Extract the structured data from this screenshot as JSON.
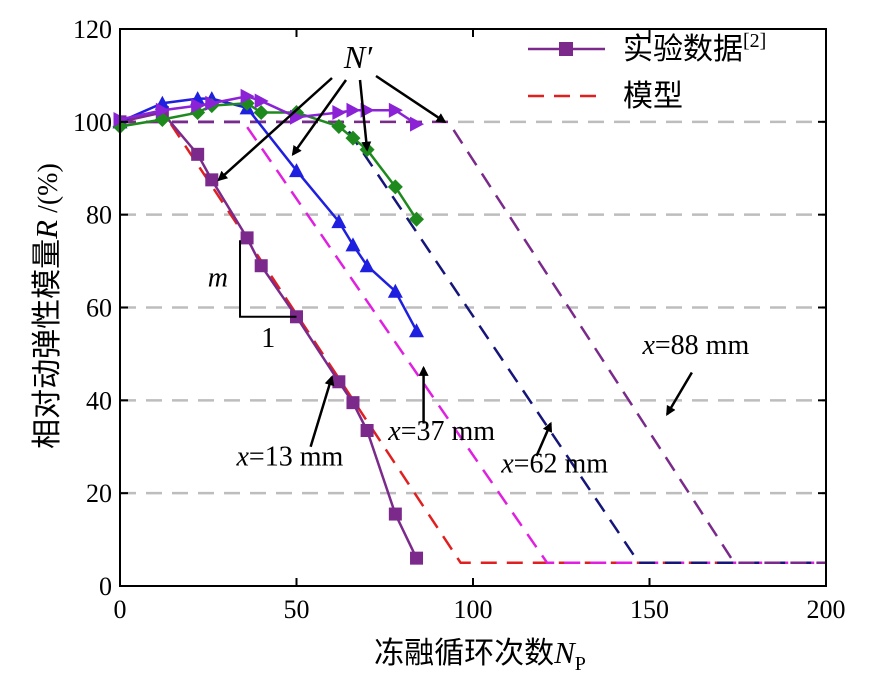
{
  "chart_data": {
    "type": "line",
    "xlabel_main": "冻融循环次数",
    "xlabel_var": "N",
    "xlabel_sub": "P",
    "ylabel_main": "相对动弹性模量",
    "ylabel_var": "R",
    "ylabel_unit": " /(%)",
    "xlim": [
      0,
      200
    ],
    "ylim": [
      0,
      120
    ],
    "xticks": [
      0,
      50,
      100,
      150,
      200
    ],
    "yticks": [
      0,
      20,
      40,
      60,
      80,
      100,
      120
    ],
    "gridlines_y": [
      20,
      40,
      60,
      80,
      100
    ],
    "legend": {
      "experiment_main": "实验数据",
      "experiment_ref": "[2]",
      "model": "模型"
    },
    "experiment_series": [
      {
        "name": "x=13 mm",
        "color": "#7B2A8C",
        "marker": "square",
        "x": [
          0,
          12,
          22,
          26,
          36,
          40,
          50,
          62,
          66,
          70,
          78,
          84
        ],
        "y": [
          100,
          102,
          93,
          87.5,
          75,
          69,
          58,
          44,
          39.5,
          33.5,
          15.5,
          6
        ]
      },
      {
        "name": "x=37 mm",
        "color": "#1F1FE0",
        "marker": "triangle-up",
        "x": [
          0,
          12,
          22,
          26,
          36,
          50,
          62,
          66,
          70,
          78,
          84
        ],
        "y": [
          100,
          104,
          105,
          105,
          103,
          89.5,
          78.5,
          73.5,
          69,
          63.5,
          55
        ]
      },
      {
        "name": "x=62 mm",
        "color": "#1E8A1E",
        "marker": "diamond",
        "x": [
          0,
          12,
          22,
          26,
          36,
          40,
          50,
          62,
          66,
          70,
          78,
          84
        ],
        "y": [
          99,
          100.5,
          102,
          103.5,
          104,
          102,
          102,
          99,
          96.5,
          94,
          86,
          79
        ]
      },
      {
        "name": "x=88 mm",
        "color": "#8B22D6",
        "marker": "triangle-right",
        "x": [
          0,
          12,
          22,
          26,
          36,
          40,
          50,
          62,
          66,
          70,
          78,
          84
        ],
        "y": [
          100.5,
          102.5,
          103.5,
          104,
          105.5,
          104.5,
          101,
          102,
          102.5,
          102.5,
          102.5,
          99.5
        ]
      }
    ],
    "model_series": [
      {
        "name": "x=13 mm",
        "color": "#E02020",
        "x": [
          0,
          14,
          96.5,
          200
        ],
        "y": [
          100,
          100,
          5,
          5
        ]
      },
      {
        "name": "x=37 mm",
        "color": "#E020E0",
        "x": [
          0,
          35,
          121,
          200
        ],
        "y": [
          100,
          100,
          5,
          5
        ]
      },
      {
        "name": "x=62 mm",
        "color": "#15157A",
        "x": [
          0,
          63,
          147,
          200
        ],
        "y": [
          100,
          100,
          5,
          5
        ]
      },
      {
        "name": "x=88 mm",
        "color": "#7A2A8A",
        "x": [
          0,
          93,
          174,
          200
        ],
        "y": [
          100,
          100,
          5,
          5
        ]
      }
    ],
    "annotations": {
      "n_prime": "N′",
      "n_prime_targets": [
        {
          "x": 28,
          "y": 87.5
        },
        {
          "x": 49,
          "y": 93
        },
        {
          "x": 70,
          "y": 94
        },
        {
          "x": 92,
          "y": 100
        }
      ],
      "slope_rise": "m",
      "slope_run": "1",
      "slope_corner": {
        "x": 34,
        "y": 58
      },
      "slope_top_y": 74.5,
      "slope_right_x": 50,
      "labels": [
        {
          "var": "x",
          "text": "=13 mm",
          "x": 33,
          "y": 26,
          "tip": [
            60,
            45
          ],
          "tail": [
            54,
            30
          ]
        },
        {
          "var": "x",
          "text": "=37 mm",
          "x": 76,
          "y": 31.5,
          "tip": [
            86,
            47
          ],
          "tail": [
            86,
            35
          ]
        },
        {
          "var": "x",
          "text": "=62 mm",
          "x": 108,
          "y": 24.5,
          "tip": [
            122,
            35
          ],
          "tail": [
            118,
            28
          ]
        },
        {
          "var": "x",
          "text": "=88 mm",
          "x": 148,
          "y": 50,
          "tip": [
            155,
            37
          ],
          "tail": [
            162,
            46
          ]
        }
      ]
    }
  }
}
